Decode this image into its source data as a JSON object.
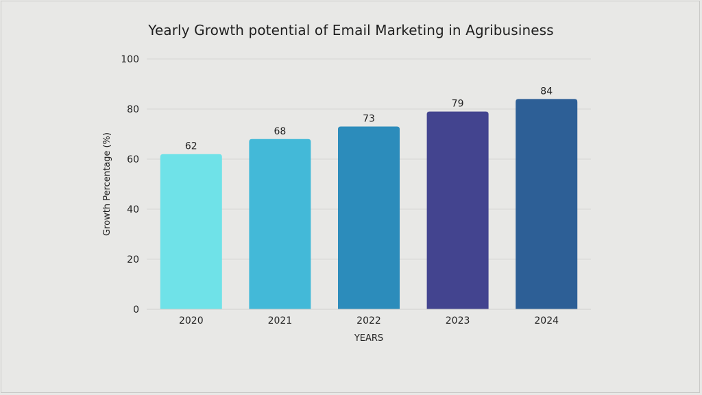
{
  "chart_data": {
    "type": "bar",
    "title": "Yearly Growth potential of Email Marketing in Agribusiness",
    "xlabel": "YEARS",
    "ylabel": "Growth Percentage (%)",
    "categories": [
      "2020",
      "2021",
      "2022",
      "2023",
      "2024"
    ],
    "values": [
      62,
      68,
      73,
      79,
      84
    ],
    "bar_colors": [
      "#6fe2e8",
      "#43b9d8",
      "#2c8cbb",
      "#43448f",
      "#2d5f96"
    ],
    "ylim": [
      0,
      100
    ],
    "yticks": [
      0,
      20,
      40,
      60,
      80,
      100
    ],
    "grid": true,
    "legend": "none"
  }
}
